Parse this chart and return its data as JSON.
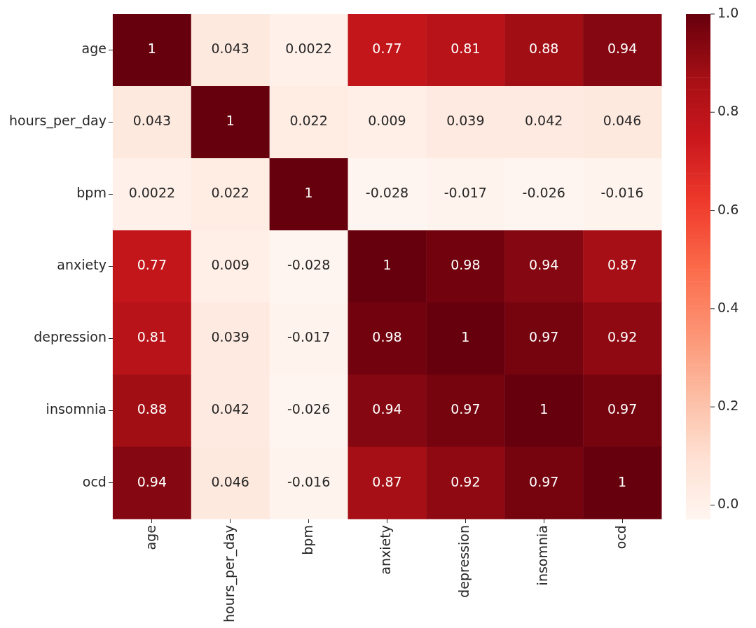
{
  "chart_data": {
    "type": "heatmap",
    "categories": [
      "age",
      "hours_per_day",
      "bpm",
      "anxiety",
      "depression",
      "insomnia",
      "ocd"
    ],
    "y_categories": [
      "age",
      "hours_per_day",
      "bpm",
      "anxiety",
      "depression",
      "insomnia",
      "ocd"
    ],
    "cells": [
      [
        1,
        0.043,
        0.0022,
        0.77,
        0.81,
        0.88,
        0.94
      ],
      [
        0.043,
        1,
        0.022,
        0.009,
        0.039,
        0.042,
        0.046
      ],
      [
        0.0022,
        0.022,
        1,
        -0.028,
        -0.017,
        -0.026,
        -0.016
      ],
      [
        0.77,
        0.009,
        -0.028,
        1,
        0.98,
        0.94,
        0.87
      ],
      [
        0.81,
        0.039,
        -0.017,
        0.98,
        1,
        0.97,
        0.92
      ],
      [
        0.88,
        0.042,
        -0.026,
        0.94,
        0.97,
        1,
        0.97
      ],
      [
        0.94,
        0.046,
        -0.016,
        0.87,
        0.92,
        0.97,
        1
      ]
    ],
    "data_labels": true,
    "clim": [
      -0.028,
      1
    ],
    "cticks": [
      {
        "value": 0,
        "label": "0.0"
      },
      {
        "value": 0.2,
        "label": "0.2"
      },
      {
        "value": 0.4,
        "label": "0.4"
      },
      {
        "value": 0.6,
        "label": "0.6"
      },
      {
        "value": 0.8,
        "label": "0.8"
      },
      {
        "value": 1,
        "label": "1.0"
      }
    ]
  }
}
